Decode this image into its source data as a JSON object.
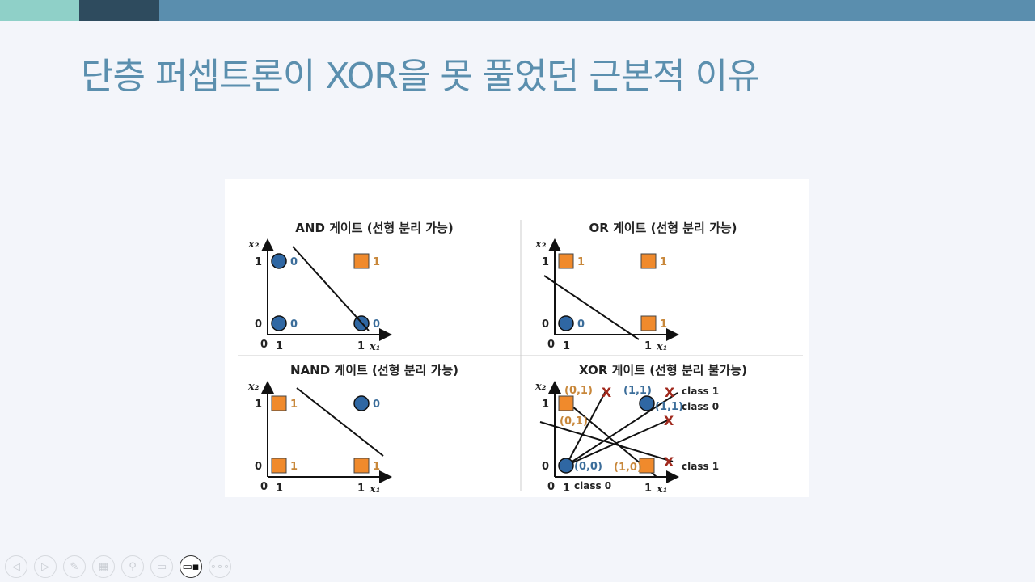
{
  "colors": {
    "bar_light": "#8fd0c8",
    "bar_dark": "#2e4b5e",
    "bar_main": "#5a8eae",
    "title": "#5b8fae",
    "circle": "#2f67a3",
    "square": "#f08a2c",
    "cross": "#a12a1e"
  },
  "slide": {
    "title": "단층 퍼셉트론이 XOR을 못 풀었던 근본적 이유"
  },
  "diagram": {
    "axes": {
      "x": "x₁",
      "y": "x₂",
      "zero": "0",
      "one": "1"
    },
    "panels": [
      {
        "title": "AND 게이트 (선형 분리 가능)",
        "outputs": {
          "00": "0",
          "10": "0",
          "01": "0",
          "11": "1"
        }
      },
      {
        "title": "OR 게이트 (선형 분리 가능)",
        "outputs": {
          "00": "0",
          "10": "1",
          "01": "1",
          "11": "1"
        }
      },
      {
        "title": "NAND 게이트 (선형 분리 가능)",
        "outputs": {
          "00": "1",
          "10": "1",
          "01": "1",
          "11": "0"
        }
      },
      {
        "title": "XOR 게이트 (선형 분리 불가능)",
        "labels": {
          "p00": "(0,0)",
          "p10": "(1,0)",
          "p01a": "(0,1)",
          "p01b": "(0,1)",
          "p11a": "(1,1)",
          "p11b": "(1,1)",
          "class1a": "class 1",
          "class0a": "class 0",
          "class1b": "class 1",
          "class0b": "class 0",
          "cross": "X"
        }
      }
    ]
  },
  "toolbar": [
    {
      "icon": "prev-icon",
      "glyph": "◁"
    },
    {
      "icon": "next-icon",
      "glyph": "▷"
    },
    {
      "icon": "pen-icon",
      "glyph": "✎"
    },
    {
      "icon": "slides-icon",
      "glyph": "▦"
    },
    {
      "icon": "zoom-icon",
      "glyph": "⚲"
    },
    {
      "icon": "subtitle-icon",
      "glyph": "▭"
    },
    {
      "icon": "camera-icon",
      "glyph": "▭▪"
    },
    {
      "icon": "more-icon",
      "glyph": "∘∘∘"
    }
  ]
}
